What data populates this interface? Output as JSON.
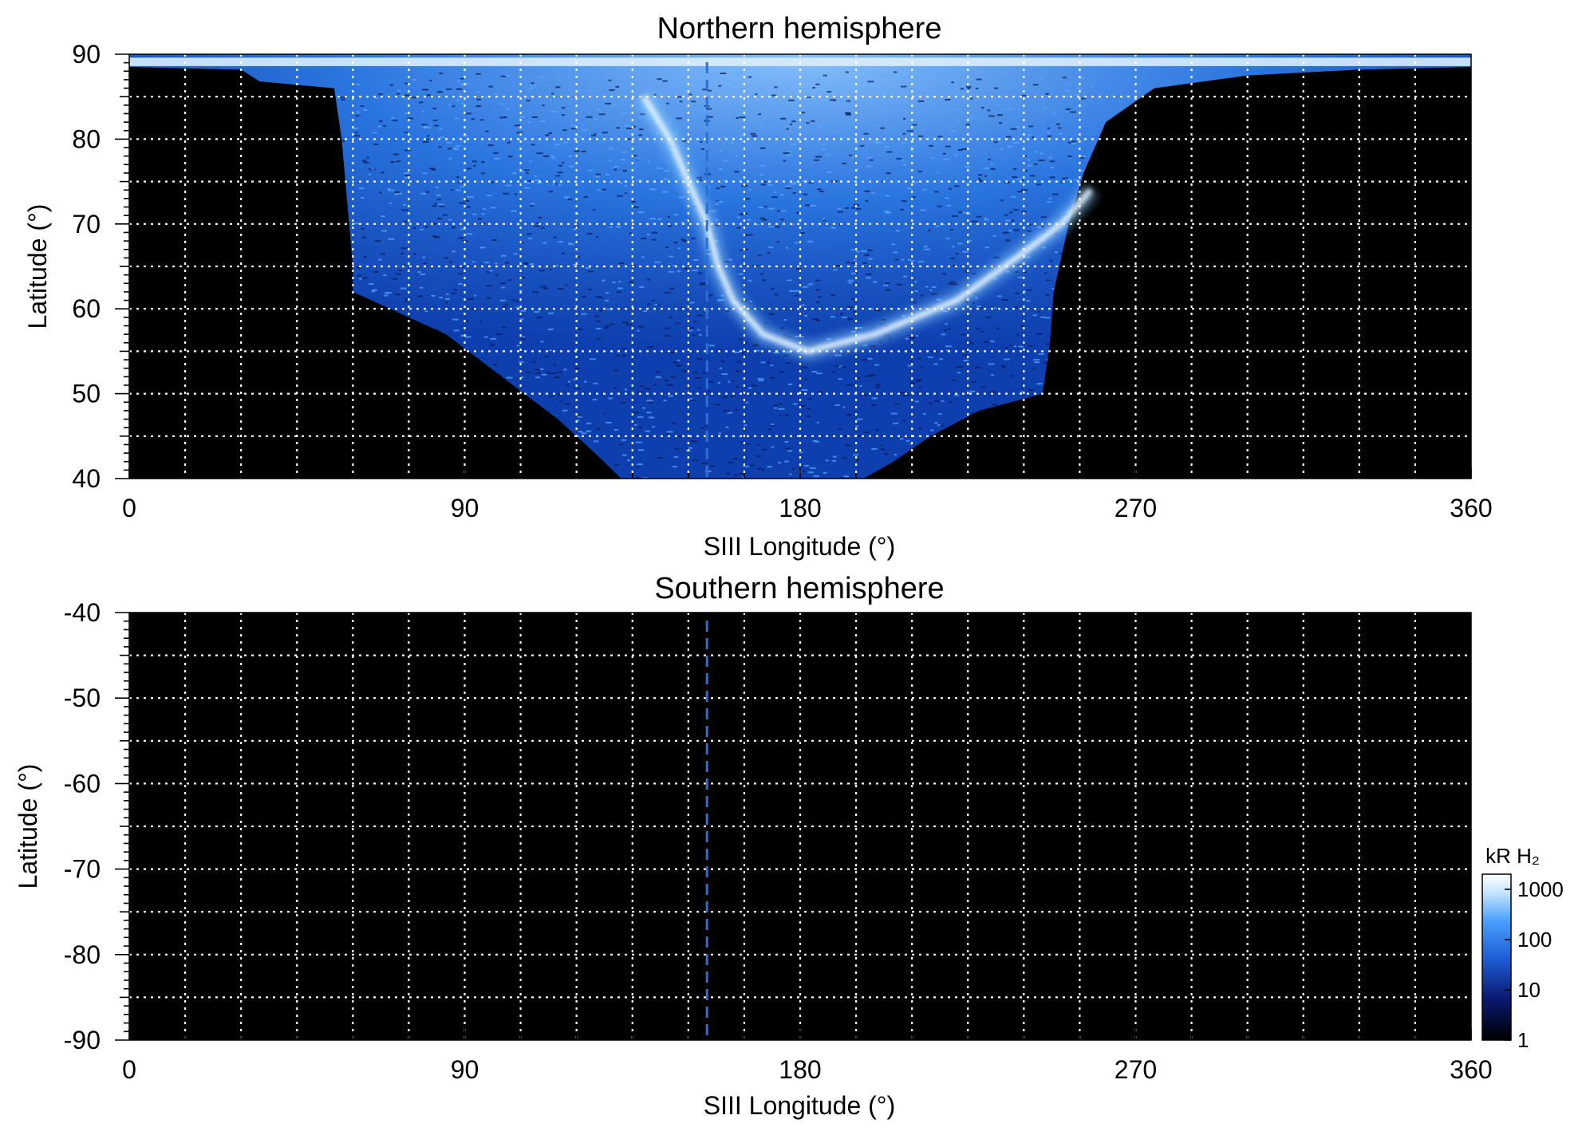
{
  "chart_data": [
    {
      "type": "heatmap",
      "title": "Northern hemisphere",
      "xlabel": "SIII Longitude (°)",
      "ylabel": "Latitude (°)",
      "xlim": [
        0,
        360
      ],
      "ylim": [
        40,
        90
      ],
      "xticks": [
        0,
        90,
        180,
        270,
        360
      ],
      "yticks": [
        40,
        50,
        60,
        70,
        80,
        90
      ],
      "grid": true,
      "marker_longitude": 155,
      "colorscale": "log",
      "description_of_emission": {
        "main_oval_points": [
          [
            138,
            85
          ],
          [
            145,
            80
          ],
          [
            150,
            75
          ],
          [
            155,
            70
          ],
          [
            158,
            65
          ],
          [
            162,
            61
          ],
          [
            170,
            57
          ],
          [
            182,
            55
          ],
          [
            200,
            57
          ],
          [
            222,
            61
          ],
          [
            238,
            66
          ],
          [
            250,
            70
          ],
          [
            258,
            74
          ]
        ],
        "footprint_lon_range": [
          30,
          350
        ]
      }
    },
    {
      "type": "heatmap",
      "title": "Southern hemisphere",
      "xlabel": "SIII Longitude (°)",
      "ylabel": "Latitude (°)",
      "xlim": [
        0,
        360
      ],
      "ylim": [
        -90,
        -40
      ],
      "xticks": [
        0,
        90,
        180,
        270,
        360
      ],
      "yticks": [
        -90,
        -80,
        -70,
        -60,
        -50,
        -40
      ],
      "grid": true,
      "marker_longitude": 155
    }
  ],
  "colorbar": {
    "label": "kR H₂",
    "ticks": [
      1,
      10,
      100,
      1000
    ],
    "range": [
      1,
      2000
    ],
    "scale": "log",
    "colors": [
      "#000000",
      "#0a1a70",
      "#1e5fd8",
      "#4aa0ff",
      "#bfe2ff",
      "#ffffff"
    ]
  },
  "colors": {
    "background": "#000000",
    "grid": "#ffffff",
    "marker": "#2b6fd6"
  }
}
